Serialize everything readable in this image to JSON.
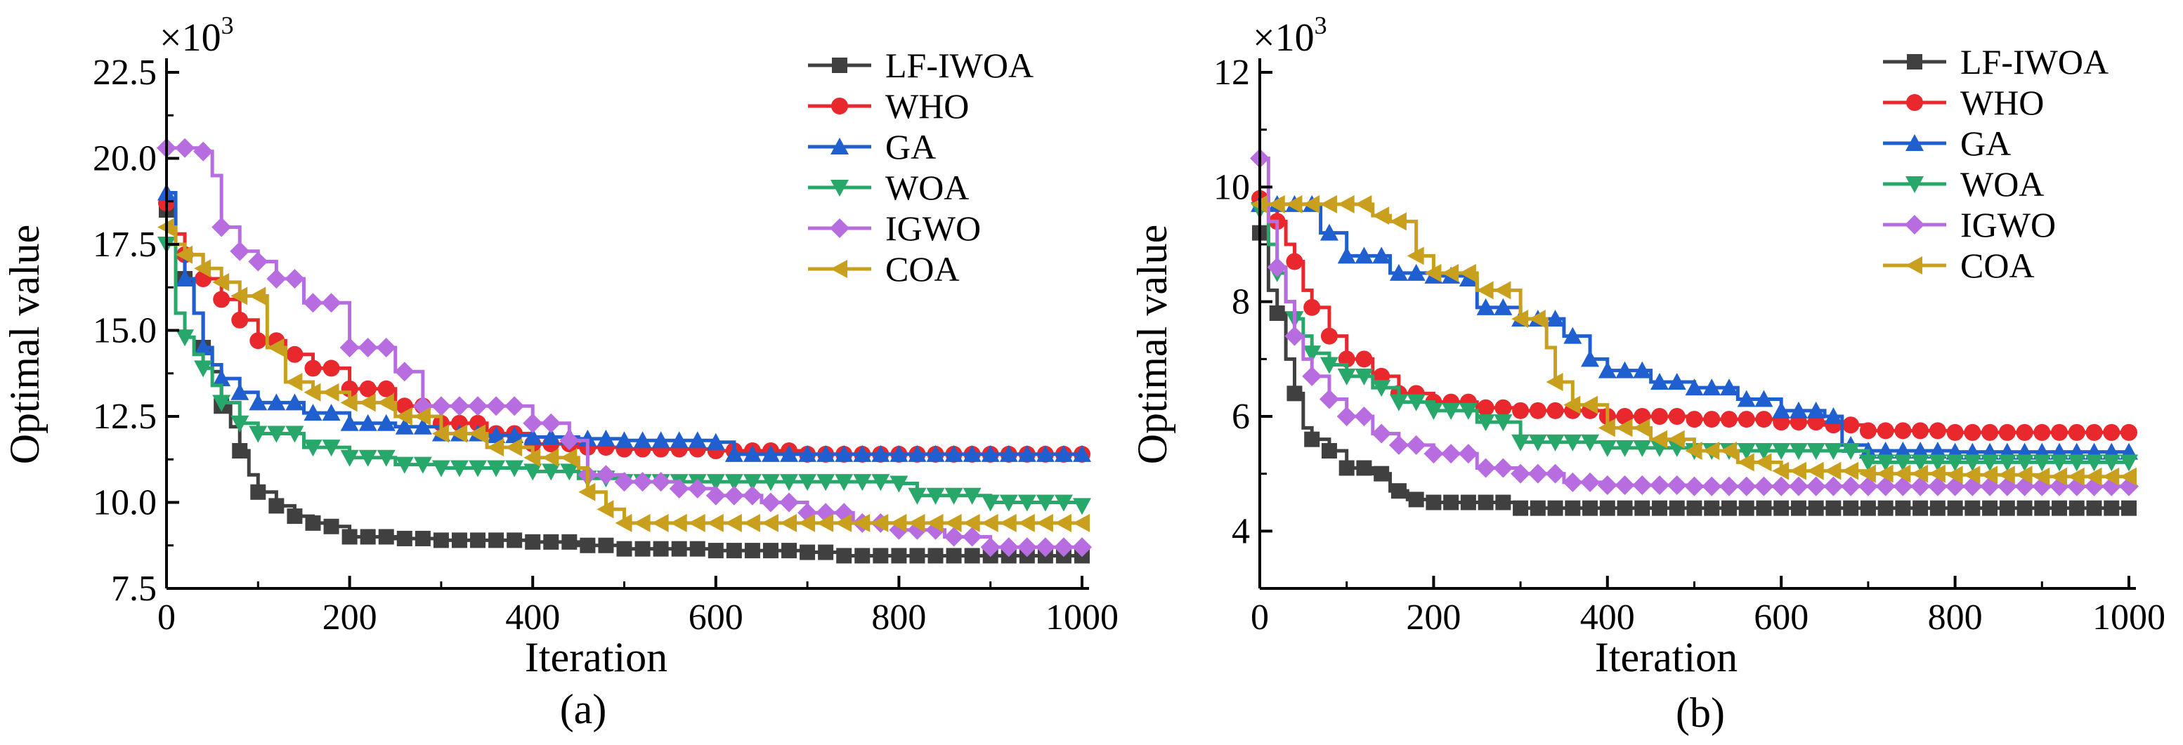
{
  "chart_data": [
    {
      "type": "line",
      "panel": "(a)",
      "xlabel": "Iteration",
      "ylabel": "Optimal value",
      "multiplier": "×10",
      "multiplier_exp": "3",
      "xlim": [
        0,
        1000
      ],
      "ylim": [
        7.5,
        22.5
      ],
      "x_ticks": [
        0,
        200,
        400,
        600,
        800,
        1000
      ],
      "y_ticks": [
        7.5,
        10.0,
        12.5,
        15.0,
        17.5,
        20.0,
        22.5
      ],
      "x_tick_labels": [
        "0",
        "200",
        "400",
        "600",
        "800",
        "1000"
      ],
      "y_tick_labels": [
        "7.5",
        "10.0",
        "12.5",
        "15.0",
        "17.5",
        "20.0",
        "22.5"
      ],
      "legend_position": "top-right",
      "series": [
        {
          "name": "LF-IWOA",
          "color": "#404040",
          "marker": "square",
          "x": [
            0,
            10,
            20,
            30,
            40,
            50,
            60,
            70,
            80,
            90,
            100,
            120,
            140,
            160,
            180,
            200,
            250,
            300,
            350,
            400,
            450,
            500,
            600,
            700,
            740,
            800,
            900,
            1000
          ],
          "y": [
            18.5,
            17.5,
            16.5,
            15.5,
            14.5,
            13.8,
            12.8,
            12.2,
            11.5,
            10.8,
            10.3,
            9.9,
            9.6,
            9.4,
            9.3,
            9.0,
            8.95,
            8.9,
            8.9,
            8.85,
            8.75,
            8.65,
            8.6,
            8.55,
            8.45,
            8.45,
            8.45,
            8.45
          ]
        },
        {
          "name": "WHO",
          "color": "#e8282d",
          "marker": "circle",
          "x": [
            0,
            10,
            20,
            40,
            60,
            80,
            100,
            130,
            160,
            200,
            250,
            300,
            350,
            400,
            450,
            500,
            600,
            700,
            800,
            900,
            1000
          ],
          "y": [
            18.7,
            17.8,
            17.2,
            16.5,
            15.9,
            15.3,
            14.7,
            14.3,
            13.9,
            13.3,
            12.8,
            12.3,
            12.0,
            11.7,
            11.6,
            11.55,
            11.5,
            11.4,
            11.4,
            11.4,
            11.4
          ]
        },
        {
          "name": "GA",
          "color": "#1f5fd0",
          "marker": "triangle-up",
          "x": [
            0,
            10,
            20,
            30,
            40,
            50,
            60,
            80,
            100,
            150,
            200,
            250,
            300,
            350,
            400,
            450,
            500,
            550,
            600,
            620,
            700,
            800,
            900,
            1000
          ],
          "y": [
            19.0,
            17.5,
            16.5,
            15.5,
            14.5,
            14.0,
            13.6,
            13.2,
            12.9,
            12.6,
            12.3,
            12.2,
            12.0,
            11.95,
            11.9,
            11.85,
            11.8,
            11.8,
            11.75,
            11.4,
            11.4,
            11.4,
            11.4,
            11.4
          ]
        },
        {
          "name": "WOA",
          "color": "#27a86a",
          "marker": "triangle-down",
          "x": [
            0,
            10,
            20,
            30,
            40,
            50,
            60,
            80,
            100,
            150,
            200,
            250,
            300,
            350,
            400,
            450,
            500,
            600,
            700,
            800,
            820,
            900,
            1000
          ],
          "y": [
            17.5,
            15.5,
            14.8,
            14.3,
            13.9,
            13.4,
            12.9,
            12.3,
            12.0,
            11.6,
            11.3,
            11.1,
            11.0,
            11.0,
            10.9,
            10.7,
            10.6,
            10.6,
            10.6,
            10.55,
            10.2,
            10.0,
            9.9
          ]
        },
        {
          "name": "IGWO",
          "color": "#b76de0",
          "marker": "diamond",
          "x": [
            0,
            10,
            20,
            30,
            40,
            50,
            60,
            80,
            100,
            120,
            150,
            200,
            250,
            280,
            300,
            350,
            400,
            440,
            460,
            500,
            560,
            600,
            650,
            700,
            750,
            800,
            850,
            900,
            1000
          ],
          "y": [
            20.3,
            20.3,
            20.3,
            20.3,
            20.2,
            19.5,
            18.0,
            17.3,
            17.0,
            16.5,
            15.8,
            14.5,
            13.8,
            12.8,
            12.8,
            12.8,
            12.3,
            11.8,
            10.8,
            10.6,
            10.4,
            10.2,
            10.0,
            9.7,
            9.4,
            9.2,
            9.0,
            8.7,
            8.7
          ]
        },
        {
          "name": "COA",
          "color": "#c9a01e",
          "marker": "triangle-left",
          "x": [
            0,
            10,
            20,
            40,
            60,
            80,
            100,
            110,
            130,
            160,
            200,
            250,
            300,
            350,
            400,
            450,
            460,
            480,
            500,
            550,
            600,
            700,
            800,
            900,
            1000
          ],
          "y": [
            18.0,
            17.5,
            17.2,
            16.8,
            16.4,
            16.0,
            16.0,
            14.5,
            13.5,
            13.2,
            12.9,
            12.5,
            12.0,
            11.6,
            11.3,
            11.0,
            10.3,
            9.8,
            9.4,
            9.4,
            9.4,
            9.4,
            9.4,
            9.4,
            9.4
          ]
        }
      ]
    },
    {
      "type": "line",
      "panel": "(b)",
      "xlabel": "Iteration",
      "ylabel": "Optimal value",
      "multiplier": "×10",
      "multiplier_exp": "3",
      "xlim": [
        0,
        1000
      ],
      "ylim": [
        3,
        12
      ],
      "x_ticks": [
        0,
        200,
        400,
        600,
        800,
        1000
      ],
      "y_ticks": [
        4,
        6,
        8,
        10,
        12
      ],
      "x_tick_labels": [
        "0",
        "200",
        "400",
        "600",
        "800",
        "1000"
      ],
      "y_tick_labels": [
        "4",
        "6",
        "8",
        "10",
        "12"
      ],
      "legend_position": "top-right",
      "series": [
        {
          "name": "LF-IWOA",
          "color": "#404040",
          "marker": "square",
          "x": [
            0,
            10,
            20,
            30,
            40,
            50,
            60,
            80,
            100,
            130,
            150,
            170,
            200,
            300,
            400,
            500,
            600,
            700,
            800,
            900,
            1000
          ],
          "y": [
            9.2,
            8.2,
            7.8,
            7.0,
            6.4,
            5.8,
            5.6,
            5.4,
            5.1,
            5.0,
            4.7,
            4.55,
            4.5,
            4.4,
            4.4,
            4.4,
            4.4,
            4.4,
            4.4,
            4.4,
            4.4
          ]
        },
        {
          "name": "WHO",
          "color": "#e8282d",
          "marker": "circle",
          "x": [
            0,
            10,
            20,
            30,
            40,
            50,
            60,
            80,
            100,
            130,
            160,
            200,
            250,
            300,
            400,
            500,
            600,
            650,
            700,
            800,
            900,
            1000
          ],
          "y": [
            9.8,
            9.6,
            9.4,
            9.0,
            8.7,
            8.2,
            7.9,
            7.4,
            7.0,
            6.7,
            6.4,
            6.25,
            6.15,
            6.1,
            6.0,
            5.95,
            5.9,
            5.85,
            5.75,
            5.72,
            5.72,
            5.72
          ]
        },
        {
          "name": "GA",
          "color": "#1f5fd0",
          "marker": "triangle-up",
          "x": [
            0,
            10,
            20,
            60,
            70,
            100,
            150,
            200,
            240,
            250,
            300,
            350,
            380,
            400,
            450,
            500,
            550,
            600,
            650,
            670,
            700,
            800,
            900,
            1000
          ],
          "y": [
            9.7,
            9.7,
            9.7,
            9.7,
            9.2,
            8.8,
            8.5,
            8.45,
            8.4,
            7.9,
            7.7,
            7.4,
            7.0,
            6.8,
            6.6,
            6.5,
            6.3,
            6.1,
            6.0,
            5.5,
            5.4,
            5.38,
            5.38,
            5.38
          ]
        },
        {
          "name": "WOA",
          "color": "#27a86a",
          "marker": "triangle-down",
          "x": [
            0,
            10,
            20,
            30,
            40,
            50,
            60,
            80,
            100,
            130,
            160,
            200,
            250,
            300,
            400,
            500,
            600,
            650,
            700,
            800,
            900,
            1000
          ],
          "y": [
            9.6,
            9.0,
            8.5,
            8.0,
            7.7,
            7.4,
            7.1,
            6.9,
            6.7,
            6.5,
            6.25,
            6.1,
            5.9,
            5.55,
            5.45,
            5.4,
            5.4,
            5.4,
            5.2,
            5.2,
            5.2,
            5.2
          ]
        },
        {
          "name": "IGWO",
          "color": "#b76de0",
          "marker": "diamond",
          "x": [
            0,
            10,
            20,
            30,
            40,
            50,
            60,
            80,
            100,
            130,
            160,
            200,
            250,
            300,
            350,
            400,
            500,
            600,
            700,
            800,
            900,
            1000
          ],
          "y": [
            10.5,
            9.4,
            8.6,
            8.0,
            7.4,
            7.0,
            6.7,
            6.3,
            6.0,
            5.7,
            5.5,
            5.35,
            5.1,
            5.0,
            4.85,
            4.8,
            4.78,
            4.78,
            4.78,
            4.78,
            4.78,
            4.78
          ]
        },
        {
          "name": "COA",
          "color": "#c9a01e",
          "marker": "triangle-left",
          "x": [
            0,
            10,
            20,
            50,
            100,
            130,
            150,
            180,
            200,
            250,
            300,
            330,
            340,
            360,
            400,
            450,
            500,
            550,
            600,
            700,
            800,
            900,
            1000
          ],
          "y": [
            9.7,
            9.7,
            9.7,
            9.7,
            9.7,
            9.5,
            9.4,
            8.8,
            8.5,
            8.2,
            7.7,
            7.2,
            6.6,
            6.2,
            5.8,
            5.6,
            5.4,
            5.2,
            5.05,
            5.0,
            4.98,
            4.95,
            4.95
          ]
        }
      ]
    }
  ]
}
